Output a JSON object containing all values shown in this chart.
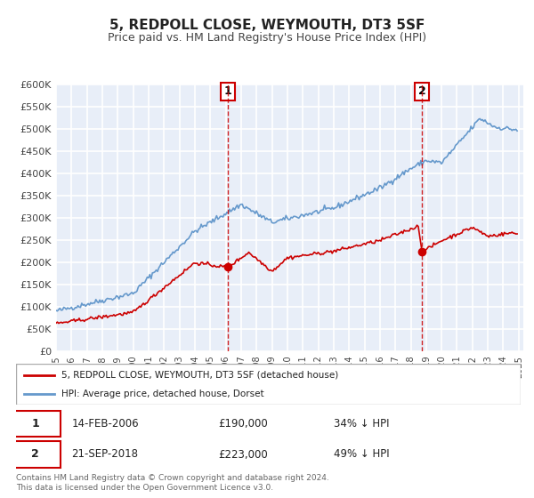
{
  "title": "5, REDPOLL CLOSE, WEYMOUTH, DT3 5SF",
  "subtitle": "Price paid vs. HM Land Registry's House Price Index (HPI)",
  "legend_label_red": "5, REDPOLL CLOSE, WEYMOUTH, DT3 5SF (detached house)",
  "legend_label_blue": "HPI: Average price, detached house, Dorset",
  "annotation1_date": "14-FEB-2006",
  "annotation1_price": "£190,000",
  "annotation1_hpi": "34% ↓ HPI",
  "annotation1_year": 2006.12,
  "annotation1_value": 190000,
  "annotation2_date": "21-SEP-2018",
  "annotation2_price": "£223,000",
  "annotation2_hpi": "49% ↓ HPI",
  "annotation2_year": 2018.72,
  "annotation2_value": 223000,
  "tick_color": "#444444",
  "red_color": "#cc0000",
  "blue_color": "#6699cc",
  "background_color": "#e8eef8",
  "grid_color": "#ffffff",
  "footer_text": "Contains HM Land Registry data © Crown copyright and database right 2024.\nThis data is licensed under the Open Government Licence v3.0.",
  "ylim": [
    0,
    600000
  ],
  "xlim_start": 1995.0,
  "xlim_end": 2025.3
}
